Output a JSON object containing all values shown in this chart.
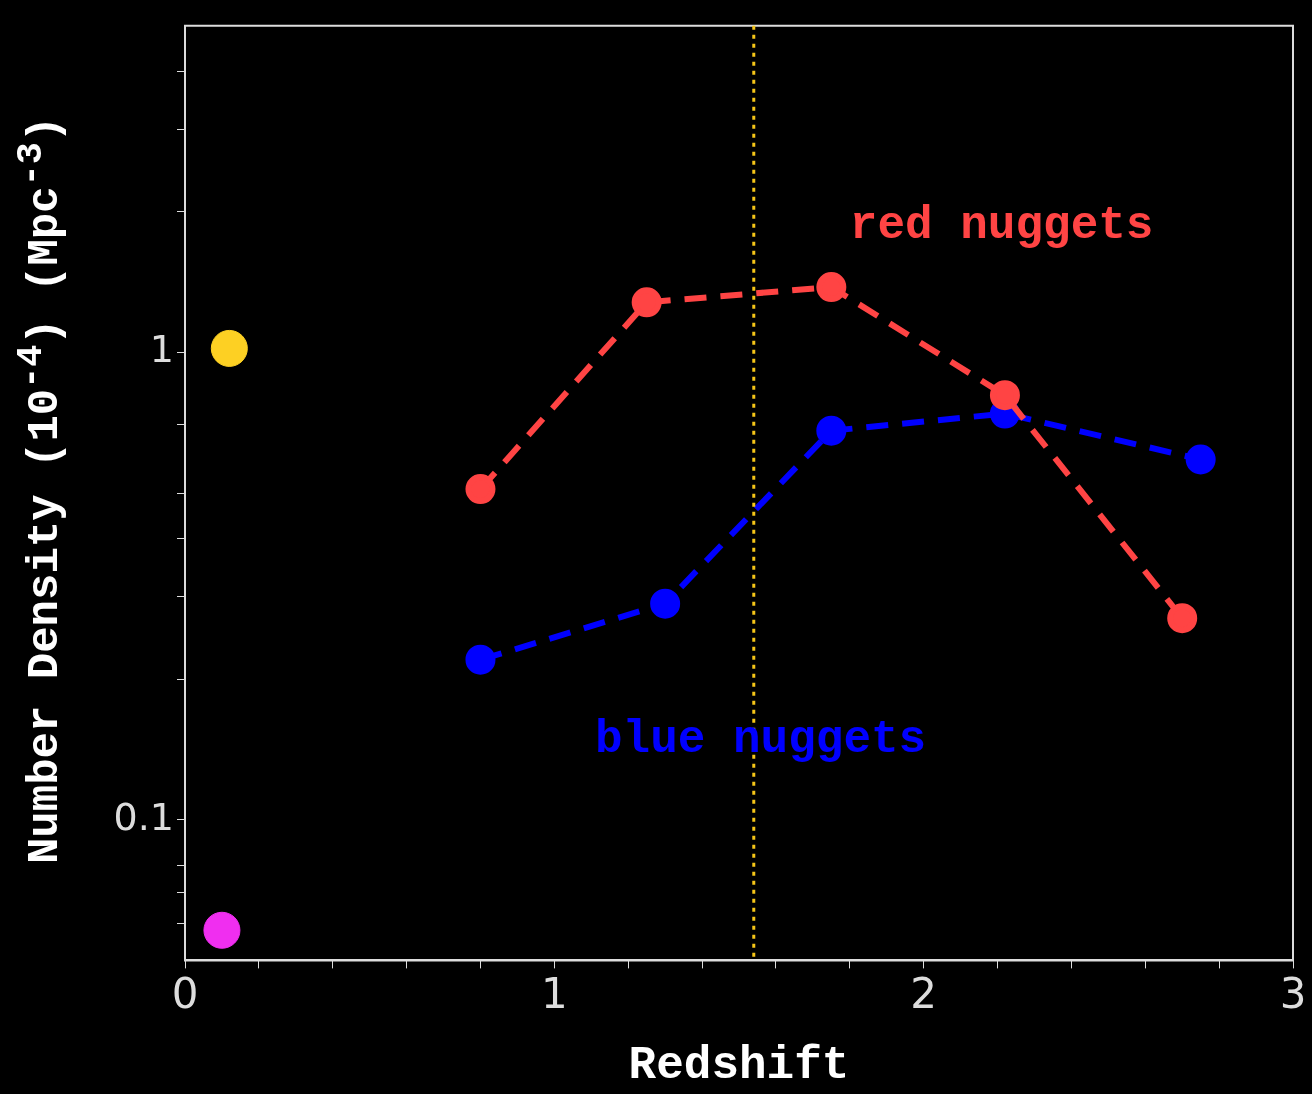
{
  "chart_data": {
    "type": "line",
    "xlabel": "Redshift",
    "ylabel": "Number Density (10$^{-4}$) (Mpc$^{-3}$)",
    "log": "y",
    "grid": false,
    "legend": false,
    "marker": "circle",
    "line_style": "dashed",
    "xlim": [
      0,
      3
    ],
    "xticks": [
      0,
      {
        "value": 0.2,
        "label": null
      },
      {
        "value": 0.4,
        "label": null
      },
      {
        "value": 0.6,
        "label": null
      },
      {
        "value": 0.8,
        "label": null
      },
      1,
      {
        "value": 1.2,
        "label": null
      },
      {
        "value": 1.4,
        "label": null
      },
      {
        "value": 1.6,
        "label": null
      },
      {
        "value": 1.8,
        "label": null
      },
      2,
      {
        "value": 2.2,
        "label": null
      },
      {
        "value": 2.4,
        "label": null
      },
      {
        "value": 2.6,
        "label": null
      },
      {
        "value": 2.8,
        "label": null
      },
      3
    ],
    "ylim": [
      0.05,
      5
    ],
    "yticks": [
      {
        "value": 0.06,
        "label": null
      },
      {
        "value": 0.07,
        "label": null
      },
      {
        "value": 0.08,
        "label": null
      },
      0.1,
      {
        "value": 0.2,
        "label": null
      },
      {
        "value": 0.3,
        "label": null
      },
      {
        "value": 0.4,
        "label": null
      },
      {
        "value": 0.5,
        "label": null
      },
      {
        "value": 0.7,
        "label": null
      },
      1,
      {
        "value": 2,
        "label": null
      },
      {
        "value": 3,
        "label": null
      },
      {
        "value": 4,
        "label": null
      }
    ],
    "series": [
      {
        "name": "red nuggets",
        "color": "#ff4444",
        "x": [
          0.8,
          1.25,
          1.75,
          2.22,
          2.7
        ],
        "values": [
          0.51,
          1.28,
          1.38,
          0.81,
          0.27
        ]
      },
      {
        "name": "blue nuggets",
        "color": "#0000ff",
        "x": [
          0.8,
          1.3,
          1.75,
          2.22,
          2.75
        ],
        "values": [
          0.22,
          0.29,
          0.68,
          0.74,
          0.59
        ]
      },
      {
        "type": "scatter",
        "color": "#fdd023",
        "x": [
          0.12
        ],
        "values": [
          1.02
        ]
      },
      {
        "type": "scatter",
        "color": "#f02ef0",
        "x": [
          0.1
        ],
        "values": [
          0.058
        ]
      }
    ],
    "ref_lines": [
      {
        "axis": "x",
        "value": 1.54,
        "color": "#f5c518",
        "line_style": "dotted"
      }
    ]
  }
}
